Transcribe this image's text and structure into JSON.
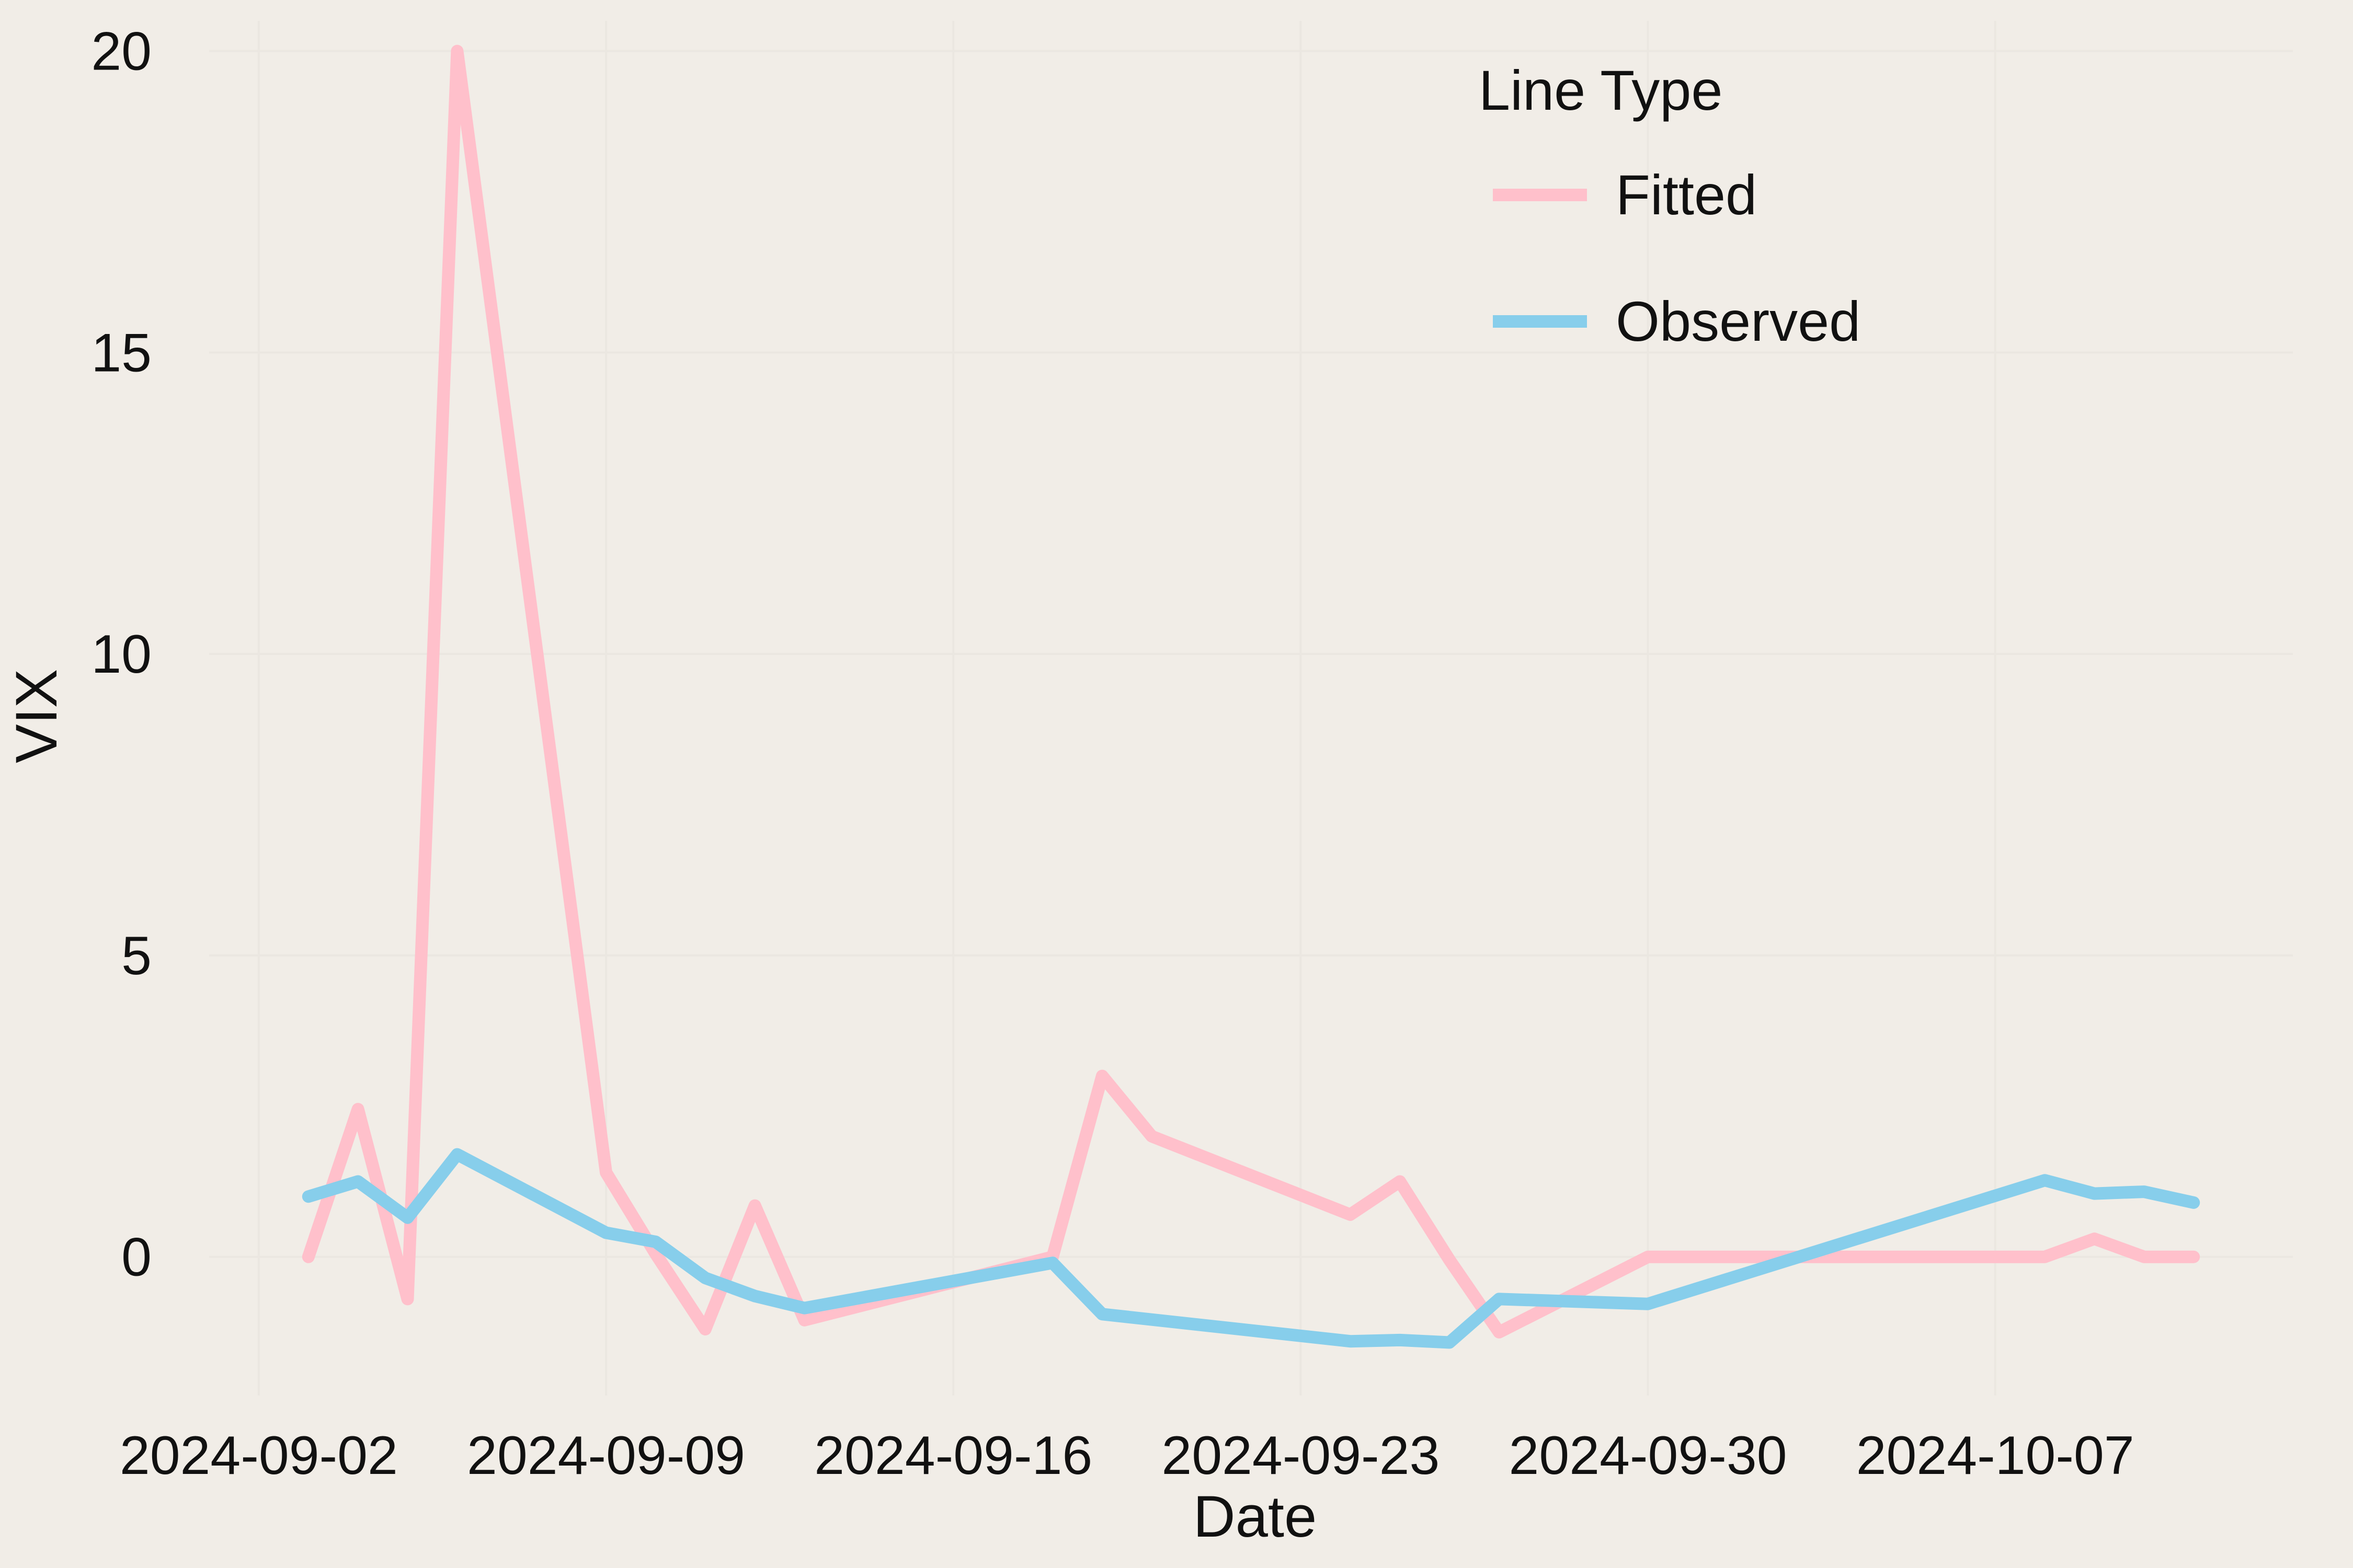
{
  "chart_data": {
    "type": "line",
    "xlabel": "Date",
    "ylabel": "VIX",
    "x_tick_labels": [
      "2024-09-02",
      "2024-09-09",
      "2024-09-16",
      "2024-09-23",
      "2024-09-30",
      "2024-10-07"
    ],
    "x_ticks": [
      "2024-09-02",
      "2024-09-09",
      "2024-09-16",
      "2024-09-23",
      "2024-09-30",
      "2024-10-07"
    ],
    "y_ticks": [
      0,
      5,
      10,
      15,
      20
    ],
    "y_tick_labels": [
      "0",
      "5",
      "10",
      "15",
      "20"
    ],
    "xlim": [
      "2024-09-01",
      "2024-10-13"
    ],
    "ylim": [
      -2.3,
      20.5
    ],
    "grid": true,
    "legend": {
      "title": "Line Type",
      "position": "top-right"
    },
    "series": [
      {
        "name": "Fitted",
        "color": "#ffc0cb",
        "points": [
          [
            "2024-09-03",
            0.0
          ],
          [
            "2024-09-04",
            2.45
          ],
          [
            "2024-09-05",
            -0.7
          ],
          [
            "2024-09-06",
            20.0
          ],
          [
            "2024-09-09",
            1.4
          ],
          [
            "2024-09-10",
            0.05
          ],
          [
            "2024-09-11",
            -1.2
          ],
          [
            "2024-09-12",
            0.85
          ],
          [
            "2024-09-13",
            -1.05
          ],
          [
            "2024-09-18",
            0.0
          ],
          [
            "2024-09-19",
            3.0
          ],
          [
            "2024-09-20",
            2.0
          ],
          [
            "2024-09-24",
            0.7
          ],
          [
            "2024-09-25",
            1.25
          ],
          [
            "2024-09-26",
            -0.05
          ],
          [
            "2024-09-27",
            -1.25
          ],
          [
            "2024-09-30",
            0.0
          ],
          [
            "2024-10-08",
            0.0
          ],
          [
            "2024-10-09",
            0.3
          ],
          [
            "2024-10-10",
            0.0
          ],
          [
            "2024-10-11",
            0.0
          ]
        ]
      },
      {
        "name": "Observed",
        "color": "#87ceeb",
        "points": [
          [
            "2024-09-03",
            1.0
          ],
          [
            "2024-09-04",
            1.25
          ],
          [
            "2024-09-05",
            0.65
          ],
          [
            "2024-09-06",
            1.7
          ],
          [
            "2024-09-09",
            0.4
          ],
          [
            "2024-09-10",
            0.25
          ],
          [
            "2024-09-11",
            -0.35
          ],
          [
            "2024-09-12",
            -0.65
          ],
          [
            "2024-09-13",
            -0.85
          ],
          [
            "2024-09-18",
            -0.1
          ],
          [
            "2024-09-19",
            -0.95
          ],
          [
            "2024-09-24",
            -1.4
          ],
          [
            "2024-09-25",
            -1.38
          ],
          [
            "2024-09-26",
            -1.42
          ],
          [
            "2024-09-27",
            -0.7
          ],
          [
            "2024-09-30",
            -0.78
          ],
          [
            "2024-10-08",
            1.27
          ],
          [
            "2024-10-09",
            1.05
          ],
          [
            "2024-10-10",
            1.08
          ],
          [
            "2024-10-11",
            0.9
          ]
        ]
      }
    ]
  }
}
